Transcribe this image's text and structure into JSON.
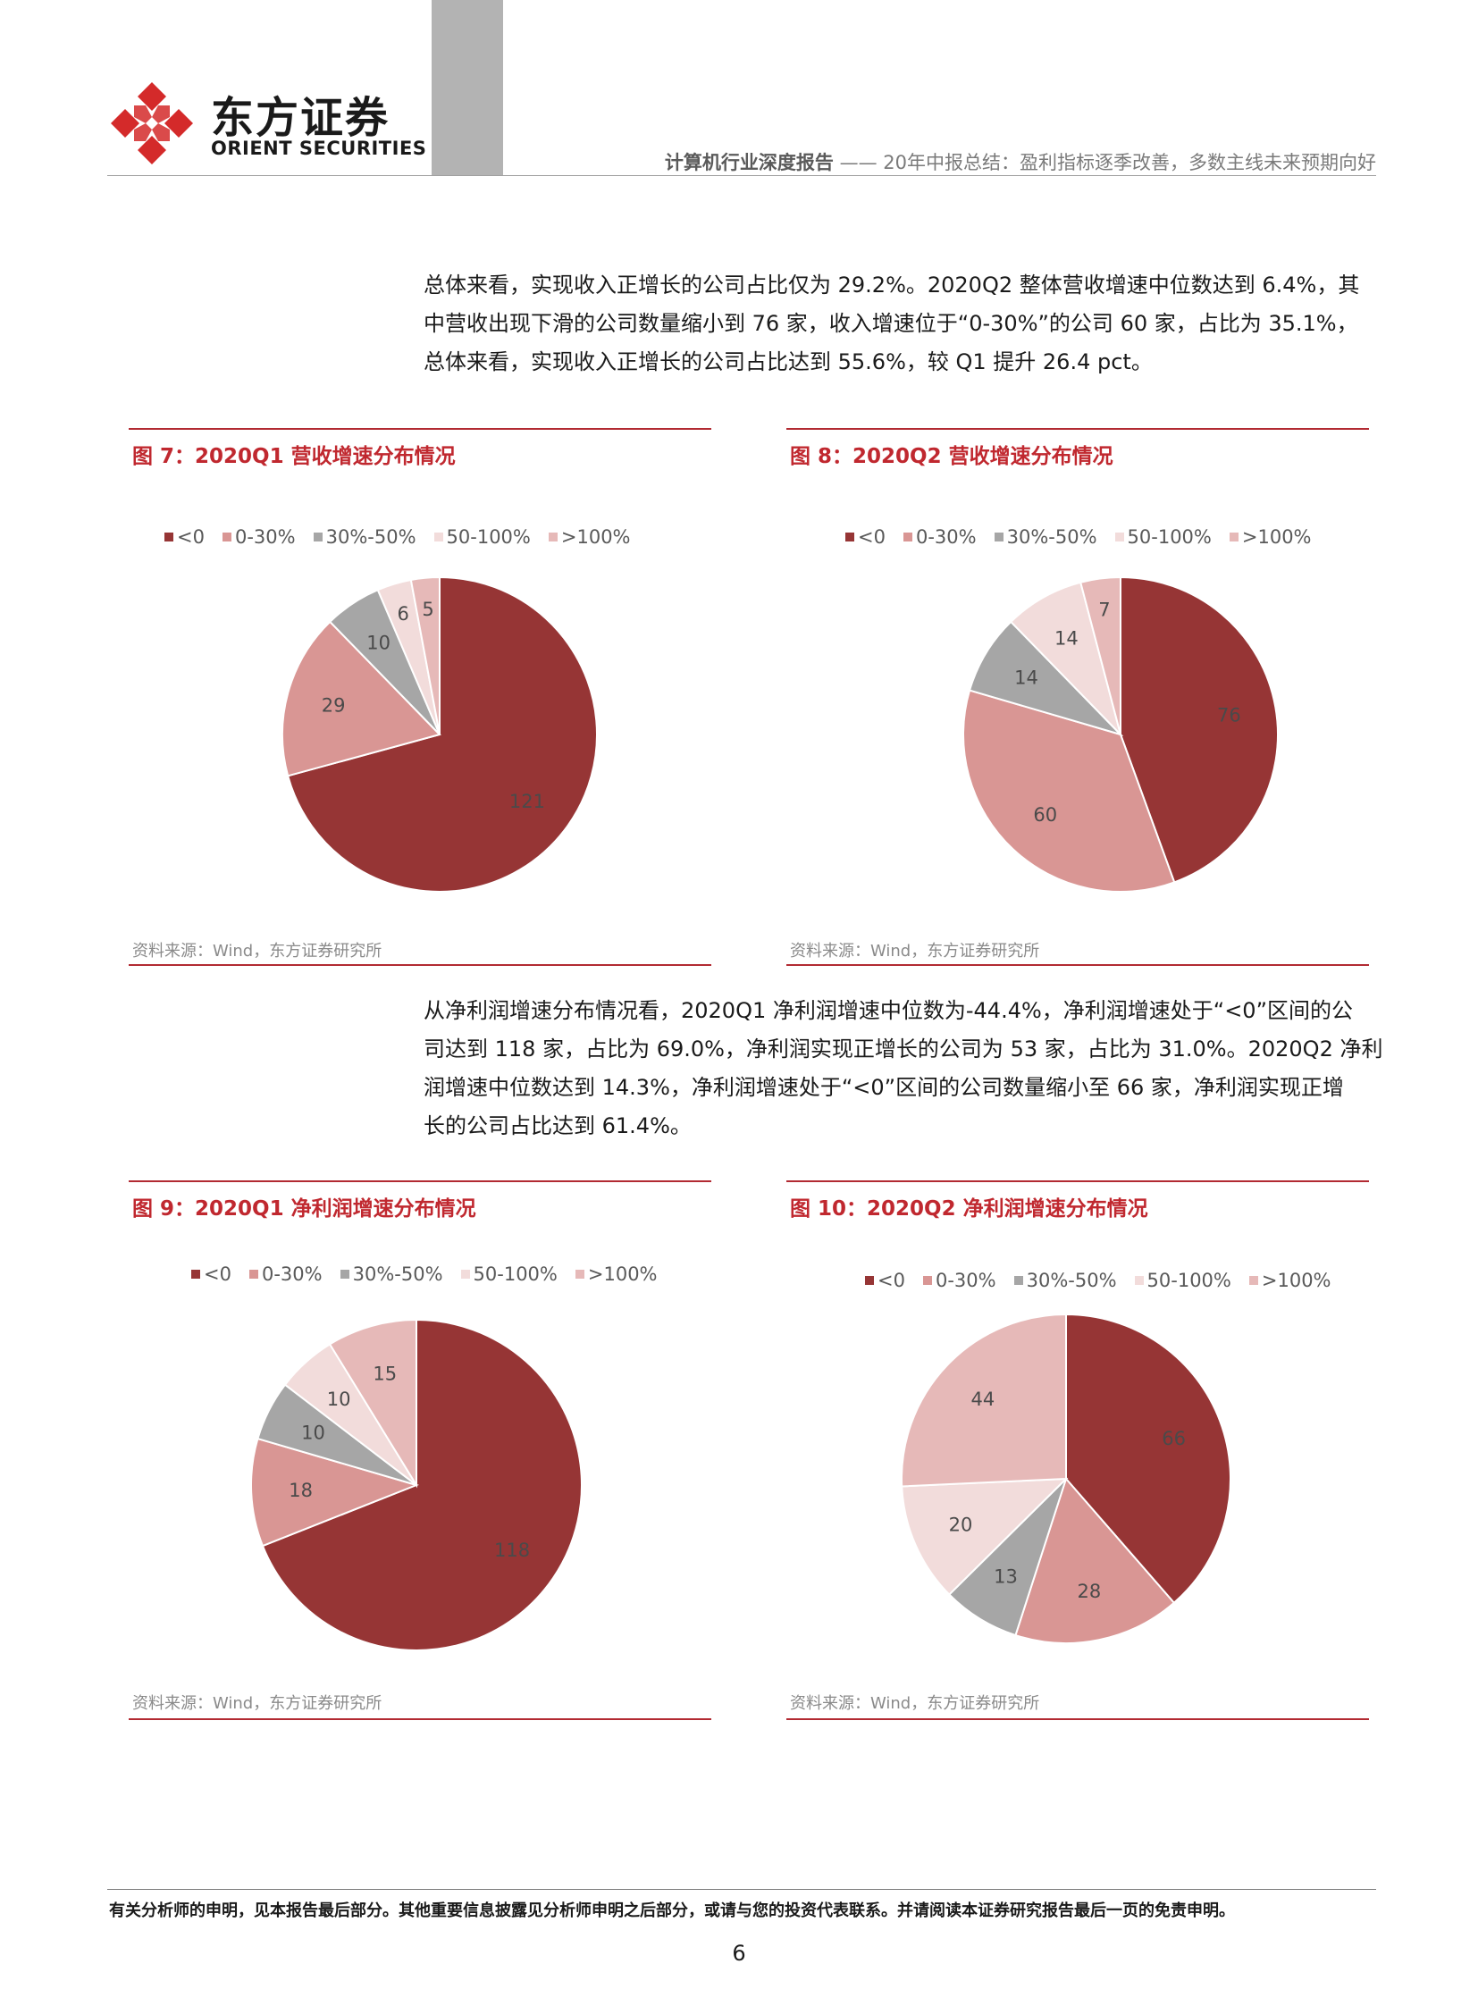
{
  "header": {
    "brand_cn": "东方证券",
    "brand_en": "ORIENT SECURITIES",
    "report_type": "计算机行业深度报告",
    "separator": " —— ",
    "report_title": "20年中报总结：盈利指标逐季改善，多数主线未来预期向好"
  },
  "paragraph1": {
    "lines": [
      "总体来看，实现收入正增长的公司占比仅为 29.2%。2020Q2 整体营收增速中位数达到 6.4%，其",
      "中营收出现下滑的公司数量缩小到 76 家，收入增速位于“0-30%”的公司 60 家，占比为 35.1%，",
      "总体来看，实现收入正增长的公司占比达到 55.6%，较 Q1 提升 26.4 pct。"
    ]
  },
  "paragraph2": {
    "lines": [
      "从净利润增速分布情况看，2020Q1 净利润增速中位数为-44.4%，净利润增速处于“<0”区间的公",
      "司达到 118 家，占比为 69.0%，净利润实现正增长的公司为 53 家，占比为 31.0%。2020Q2 净利",
      "润增速中位数达到 14.3%，净利润增速处于“<0”区间的公司数量缩小至 66 家，净利润实现正增",
      "长的公司占比达到 61.4%。"
    ]
  },
  "legend": {
    "labels": [
      "<0",
      "0-30%",
      "30%-50%",
      "50-100%",
      ">100%"
    ],
    "colors": [
      "#963535",
      "#d99694",
      "#a6a6a6",
      "#f2dcdb",
      "#e6b9b8"
    ]
  },
  "chart_data": [
    {
      "type": "pie",
      "title": "图 7：2020Q1 营收增速分布情况",
      "categories": [
        "<0",
        "0-30%",
        "30%-50%",
        "50-100%",
        ">100%"
      ],
      "values": [
        121,
        29,
        10,
        6,
        5
      ],
      "source": "资料来源：Wind，东方证券研究所"
    },
    {
      "type": "pie",
      "title": "图 8：2020Q2 营收增速分布情况",
      "categories": [
        "<0",
        "0-30%",
        "30%-50%",
        "50-100%",
        ">100%"
      ],
      "values": [
        76,
        60,
        14,
        14,
        7
      ],
      "source": "资料来源：Wind，东方证券研究所"
    },
    {
      "type": "pie",
      "title": "图 9：2020Q1 净利润增速分布情况",
      "categories": [
        "<0",
        "0-30%",
        "30%-50%",
        "50-100%",
        ">100%"
      ],
      "values": [
        118,
        18,
        10,
        10,
        15
      ],
      "source": "资料来源：Wind，东方证券研究所"
    },
    {
      "type": "pie",
      "title": "图 10：2020Q2 净利润增速分布情况",
      "categories": [
        "<0",
        "0-30%",
        "30%-50%",
        "50-100%",
        ">100%"
      ],
      "values": [
        66,
        28,
        13,
        20,
        44
      ],
      "source": "资料来源：Wind，东方证券研究所"
    }
  ],
  "footer": {
    "disclaimer": "有关分析师的申明，见本报告最后部分。其他重要信息披露见分析师申明之后部分，或请与您的投资代表联系。并请阅读本证券研究报告最后一页的免责申明。",
    "page_number": "6"
  }
}
